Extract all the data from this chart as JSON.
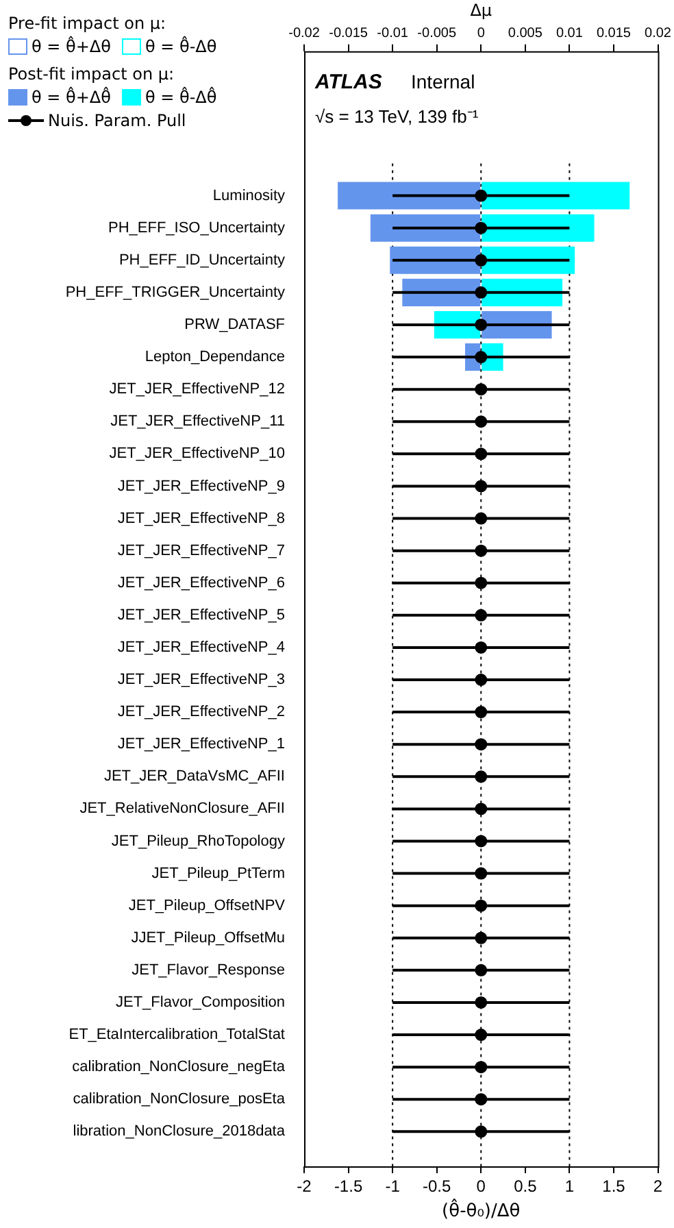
{
  "chart_data": {
    "type": "bar",
    "orientation": "horizontal",
    "categories": [
      "Luminosity",
      "PH_EFF_ISO_Uncertainty",
      "PH_EFF_ID_Uncertainty",
      "PH_EFF_TRIGGER_Uncertainty",
      "PRW_DATASF",
      "Lepton_Dependance",
      "JET_JER_EffectiveNP_12",
      "JET_JER_EffectiveNP_11",
      "JET_JER_EffectiveNP_10",
      "JET_JER_EffectiveNP_9",
      "JET_JER_EffectiveNP_8",
      "JET_JER_EffectiveNP_7",
      "JET_JER_EffectiveNP_6",
      "JET_JER_EffectiveNP_5",
      "JET_JER_EffectiveNP_4",
      "JET_JER_EffectiveNP_3",
      "JET_JER_EffectiveNP_2",
      "JET_JER_EffectiveNP_1",
      "JET_JER_DataVsMC_AFII",
      "JET_RelativeNonClosure_AFII",
      "JET_Pileup_RhoTopology",
      "JET_Pileup_PtTerm",
      "JET_Pileup_OffsetNPV",
      "JJET_Pileup_OffsetMu",
      "JET_Flavor_Response",
      "JET_Flavor_Composition",
      "ET_EtaIntercalibration_TotalStat",
      "calibration_NonClosure_negEta",
      "calibration_NonClosure_posEta",
      "libration_NonClosure_2018data"
    ],
    "series": [
      {
        "name": "θ = θ̂+Δθ",
        "type": "bar",
        "axis": "x2",
        "color": "#6495ed",
        "values": [
          null,
          null,
          null,
          null,
          null,
          null,
          null,
          null,
          null,
          null,
          null,
          null,
          null,
          null,
          null,
          null,
          null,
          null,
          null,
          null,
          null,
          null,
          null,
          null,
          null,
          null,
          null,
          null,
          null,
          null
        ]
      },
      {
        "name": "θ = θ̂-Δθ",
        "type": "bar",
        "axis": "x2",
        "color": "#00ffff",
        "values": [
          null,
          null,
          null,
          null,
          null,
          null,
          null,
          null,
          null,
          null,
          null,
          null,
          null,
          null,
          null,
          null,
          null,
          null,
          null,
          null,
          null,
          null,
          null,
          null,
          null,
          null,
          null,
          null,
          null,
          null
        ]
      },
      {
        "name": "θ = θ̂+Δθ̂",
        "type": "bar",
        "axis": "x2",
        "color": "#6495ed",
        "values": [
          -0.0162,
          -0.0125,
          -0.0103,
          -0.0089,
          0.008,
          -0.0018,
          0,
          0,
          0,
          0,
          0,
          0,
          0,
          0,
          0,
          0,
          0,
          0,
          0,
          0,
          0,
          0,
          0,
          0,
          0,
          0,
          0,
          0,
          0,
          0
        ]
      },
      {
        "name": "θ = θ̂-Δθ̂",
        "type": "bar",
        "axis": "x2",
        "color": "#00ffff",
        "values": [
          0.0168,
          0.0128,
          0.0106,
          0.0092,
          -0.0053,
          0.0025,
          0,
          0,
          0,
          0,
          0,
          0,
          0,
          0,
          0,
          0,
          0,
          0,
          0,
          0,
          0,
          0,
          0,
          0,
          0,
          0,
          0,
          0,
          0,
          0
        ]
      },
      {
        "name": "Nuis. Param. Pull",
        "type": "scatter",
        "color": "#000000",
        "values": [
          0,
          0,
          0,
          0,
          0,
          0,
          0,
          0,
          0,
          0,
          0,
          0,
          0,
          0,
          0,
          0,
          0,
          0,
          0,
          0,
          0,
          0,
          0,
          0,
          0,
          0,
          0,
          0,
          0,
          0
        ],
        "errors": [
          1,
          1,
          1,
          1,
          1,
          1,
          1,
          1,
          1,
          1,
          1,
          1,
          1,
          1,
          1,
          1,
          1,
          1,
          1,
          1,
          1,
          1,
          1,
          1,
          1,
          1,
          1,
          1,
          1,
          1
        ]
      }
    ],
    "xlabel": "(θ̂-θ₀)/Δθ",
    "x2label": "Δμ",
    "xlim": [
      -2,
      2
    ],
    "xticks": [
      -2,
      -1.5,
      -1,
      -0.5,
      0,
      0.5,
      1,
      1.5,
      2
    ],
    "x2lim": [
      -0.02,
      0.02
    ],
    "x2ticks": [
      -0.02,
      -0.015,
      -0.01,
      -0.005,
      0,
      0.005,
      0.01,
      0.015,
      0.02
    ],
    "ref_lines": [
      {
        "axis": "x",
        "value": -1,
        "line_style": "dotted",
        "color": "#000000"
      },
      {
        "axis": "x",
        "value": 0,
        "line_style": "dotted",
        "color": "#000000"
      },
      {
        "axis": "x",
        "value": 1,
        "line_style": "dotted",
        "color": "#000000"
      }
    ],
    "annotations": [
      "ATLAS",
      "Internal",
      "√s = 13 TeV, 139 fb⁻¹",
      "Pre-fit impact on  μ:",
      "Post-fit impact on  μ:"
    ],
    "legend": "top left",
    "marker": "circle"
  }
}
